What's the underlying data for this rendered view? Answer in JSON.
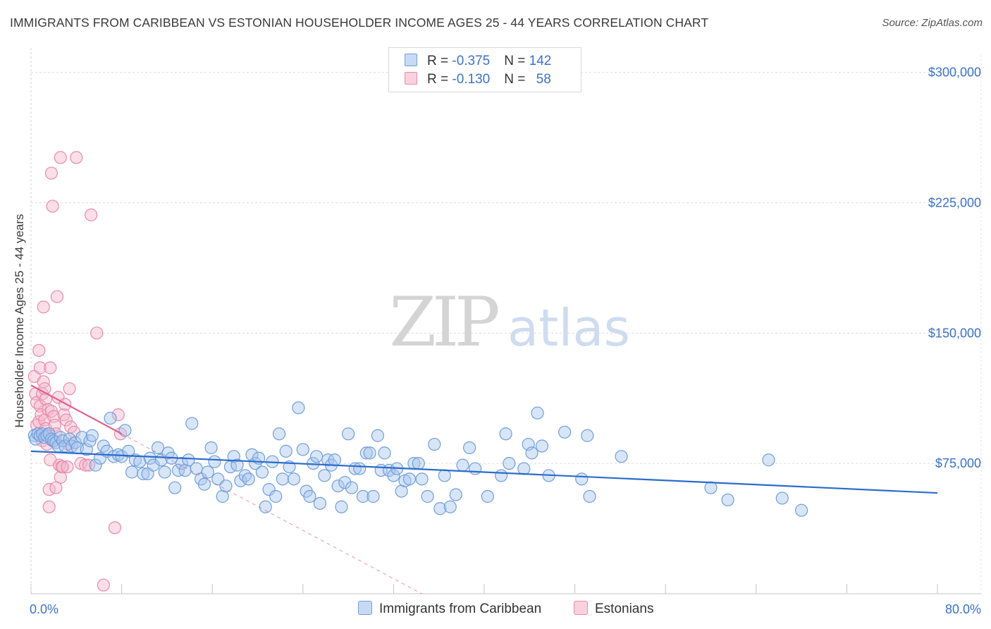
{
  "header": {
    "title": "IMMIGRANTS FROM CARIBBEAN VS ESTONIAN HOUSEHOLDER INCOME AGES 25 - 44 YEARS CORRELATION CHART",
    "source": "Source: ZipAtlas.com"
  },
  "watermark": {
    "zip": "ZIP",
    "atlas": "atlas"
  },
  "legend": {
    "series1": {
      "r_label": "R = ",
      "r_value": "-0.375",
      "n_label": "N = ",
      "n_value": "142",
      "color": "#a9c5ee"
    },
    "series2": {
      "r_label": "R = ",
      "r_value": "-0.130",
      "n_label": "N = ",
      "n_value": "58",
      "color": "#f5b8cc"
    }
  },
  "bottom_legend": {
    "series1": "Immigrants from Caribbean",
    "series2": "Estonians"
  },
  "colors": {
    "blue_fill": "#a9c5ee",
    "blue_stroke": "#6f9fdc",
    "blue_line": "#2b6ccc",
    "pink_fill": "#f5b8cc",
    "pink_stroke": "#ea8aab",
    "pink_line": "#e0628c",
    "grid": "#dcdcdc",
    "tick_text": "#3a72c8"
  },
  "chart_data": {
    "type": "scatter",
    "title": "IMMIGRANTS FROM CARIBBEAN VS ESTONIAN HOUSEHOLDER INCOME AGES 25 - 44 YEARS CORRELATION CHART",
    "xlabel": "",
    "ylabel": "Householder Income Ages 25 - 44 years",
    "xlim": [
      0,
      80
    ],
    "ylim": [
      0,
      310000
    ],
    "x_tick_labels": [
      "0.0%",
      "80.0%"
    ],
    "y_ticks": [
      75000,
      150000,
      225000,
      300000
    ],
    "y_tick_labels": [
      "$75,000",
      "$150,000",
      "$225,000",
      "$300,000"
    ],
    "grid": true,
    "series": [
      {
        "name": "Immigrants from Caribbean",
        "trend": {
          "x0": 0,
          "y0": 82000,
          "x1": 80,
          "y1": 58000
        },
        "points": [
          [
            0.3,
            91000
          ],
          [
            0.4,
            89000
          ],
          [
            0.6,
            92000
          ],
          [
            0.8,
            91000
          ],
          [
            1.0,
            92000
          ],
          [
            1.2,
            90000
          ],
          [
            1.4,
            91000
          ],
          [
            1.6,
            92000
          ],
          [
            1.8,
            89000
          ],
          [
            2.0,
            88000
          ],
          [
            2.2,
            87000
          ],
          [
            2.4,
            85000
          ],
          [
            2.6,
            90000
          ],
          [
            2.8,
            88000
          ],
          [
            3.0,
            85000
          ],
          [
            3.4,
            89000
          ],
          [
            3.6,
            85000
          ],
          [
            3.9,
            87000
          ],
          [
            4.1,
            84000
          ],
          [
            4.5,
            90000
          ],
          [
            4.9,
            83000
          ],
          [
            5.2,
            88000
          ],
          [
            5.4,
            91000
          ],
          [
            5.7,
            74000
          ],
          [
            6.1,
            78000
          ],
          [
            6.4,
            85000
          ],
          [
            6.7,
            82000
          ],
          [
            7.0,
            101000
          ],
          [
            7.3,
            79000
          ],
          [
            7.7,
            80000
          ],
          [
            8.0,
            79000
          ],
          [
            8.3,
            94000
          ],
          [
            8.6,
            82000
          ],
          [
            8.9,
            70000
          ],
          [
            9.2,
            77000
          ],
          [
            9.6,
            76000
          ],
          [
            9.9,
            69000
          ],
          [
            10.3,
            69000
          ],
          [
            10.5,
            78000
          ],
          [
            10.8,
            74000
          ],
          [
            11.2,
            84000
          ],
          [
            11.5,
            77000
          ],
          [
            11.8,
            70000
          ],
          [
            12.1,
            81000
          ],
          [
            12.4,
            78000
          ],
          [
            12.7,
            61000
          ],
          [
            13.0,
            71000
          ],
          [
            13.3,
            75000
          ],
          [
            13.6,
            71000
          ],
          [
            13.9,
            77000
          ],
          [
            14.2,
            98000
          ],
          [
            14.6,
            72000
          ],
          [
            15.0,
            66000
          ],
          [
            15.3,
            63000
          ],
          [
            15.6,
            70000
          ],
          [
            15.9,
            84000
          ],
          [
            16.2,
            76000
          ],
          [
            16.5,
            66000
          ],
          [
            16.9,
            56000
          ],
          [
            17.2,
            62000
          ],
          [
            17.6,
            73000
          ],
          [
            17.9,
            79000
          ],
          [
            18.2,
            74000
          ],
          [
            18.5,
            65000
          ],
          [
            18.9,
            68000
          ],
          [
            19.2,
            66000
          ],
          [
            19.5,
            80000
          ],
          [
            19.8,
            75000
          ],
          [
            20.1,
            78000
          ],
          [
            20.4,
            70000
          ],
          [
            20.7,
            50000
          ],
          [
            21.0,
            60000
          ],
          [
            21.3,
            76000
          ],
          [
            21.6,
            56000
          ],
          [
            21.9,
            92000
          ],
          [
            22.2,
            66000
          ],
          [
            22.5,
            82000
          ],
          [
            22.8,
            73000
          ],
          [
            23.2,
            66000
          ],
          [
            23.6,
            107000
          ],
          [
            24.0,
            83000
          ],
          [
            24.3,
            59000
          ],
          [
            24.6,
            56000
          ],
          [
            24.9,
            75000
          ],
          [
            25.2,
            79000
          ],
          [
            25.5,
            52000
          ],
          [
            25.9,
            68000
          ],
          [
            26.2,
            77000
          ],
          [
            26.5,
            74000
          ],
          [
            26.8,
            77000
          ],
          [
            27.1,
            62000
          ],
          [
            27.4,
            50000
          ],
          [
            27.7,
            64000
          ],
          [
            28.0,
            92000
          ],
          [
            28.3,
            61000
          ],
          [
            28.6,
            72000
          ],
          [
            29.0,
            72000
          ],
          [
            29.3,
            56000
          ],
          [
            29.6,
            81000
          ],
          [
            29.9,
            81000
          ],
          [
            30.2,
            56000
          ],
          [
            30.6,
            91000
          ],
          [
            30.9,
            71000
          ],
          [
            31.2,
            81000
          ],
          [
            31.6,
            71000
          ],
          [
            32.0,
            68000
          ],
          [
            32.3,
            72000
          ],
          [
            32.7,
            59000
          ],
          [
            33.0,
            65000
          ],
          [
            33.4,
            66000
          ],
          [
            33.8,
            75000
          ],
          [
            34.2,
            75000
          ],
          [
            34.5,
            66000
          ],
          [
            35.0,
            56000
          ],
          [
            35.6,
            86000
          ],
          [
            36.1,
            49000
          ],
          [
            36.5,
            68000
          ],
          [
            37.0,
            50000
          ],
          [
            37.5,
            57000
          ],
          [
            38.1,
            74000
          ],
          [
            38.7,
            84000
          ],
          [
            39.2,
            72000
          ],
          [
            40.3,
            56000
          ],
          [
            41.5,
            68000
          ],
          [
            41.9,
            92000
          ],
          [
            42.2,
            75000
          ],
          [
            43.5,
            72000
          ],
          [
            43.9,
            86000
          ],
          [
            44.2,
            81000
          ],
          [
            44.7,
            104000
          ],
          [
            45.1,
            85000
          ],
          [
            45.7,
            68000
          ],
          [
            47.1,
            93000
          ],
          [
            48.6,
            66000
          ],
          [
            49.1,
            91000
          ],
          [
            49.3,
            56000
          ],
          [
            52.1,
            79000
          ],
          [
            60.0,
            61000
          ],
          [
            61.5,
            54000
          ],
          [
            65.1,
            77000
          ],
          [
            66.3,
            55000
          ],
          [
            68.0,
            48000
          ]
        ]
      },
      {
        "name": "Estonians",
        "trend": {
          "x0": 0,
          "y0": 120000,
          "x1": 8,
          "y1": 92000
        },
        "trend_dashed": {
          "x0": 8,
          "y0": 92000,
          "x1": 34.5,
          "y1": 0
        },
        "points": [
          [
            0.3,
            125000
          ],
          [
            0.4,
            115000
          ],
          [
            0.5,
            110000
          ],
          [
            0.5,
            97000
          ],
          [
            0.6,
            92000
          ],
          [
            0.7,
            99000
          ],
          [
            0.7,
            140000
          ],
          [
            0.8,
            130000
          ],
          [
            0.8,
            108000
          ],
          [
            0.9,
            103000
          ],
          [
            1.0,
            115000
          ],
          [
            1.0,
            88000
          ],
          [
            1.1,
            165000
          ],
          [
            1.1,
            122000
          ],
          [
            1.2,
            118000
          ],
          [
            1.2,
            100000
          ],
          [
            1.3,
            112000
          ],
          [
            1.3,
            95000
          ],
          [
            1.4,
            86000
          ],
          [
            1.5,
            106000
          ],
          [
            1.5,
            92000
          ],
          [
            1.6,
            60000
          ],
          [
            1.6,
            50000
          ],
          [
            1.7,
            77000
          ],
          [
            1.7,
            130000
          ],
          [
            1.8,
            242000
          ],
          [
            1.8,
            105000
          ],
          [
            1.9,
            88000
          ],
          [
            1.9,
            223000
          ],
          [
            2.0,
            102000
          ],
          [
            2.1,
            97000
          ],
          [
            2.2,
            92000
          ],
          [
            2.2,
            61000
          ],
          [
            2.3,
            171000
          ],
          [
            2.4,
            113000
          ],
          [
            2.5,
            74000
          ],
          [
            2.6,
            67000
          ],
          [
            2.7,
            73000
          ],
          [
            2.8,
            73000
          ],
          [
            2.9,
            103000
          ],
          [
            3.0,
            109000
          ],
          [
            3.1,
            100000
          ],
          [
            3.2,
            73000
          ],
          [
            3.3,
            86000
          ],
          [
            3.4,
            118000
          ],
          [
            3.5,
            96000
          ],
          [
            3.8,
            93000
          ],
          [
            4.0,
            251000
          ],
          [
            4.4,
            75000
          ],
          [
            4.8,
            74000
          ],
          [
            5.1,
            74000
          ],
          [
            2.6,
            251000
          ],
          [
            5.3,
            218000
          ],
          [
            5.8,
            150000
          ],
          [
            6.4,
            5000
          ],
          [
            7.4,
            38000
          ],
          [
            7.7,
            103000
          ],
          [
            7.9,
            92000
          ]
        ]
      }
    ]
  }
}
